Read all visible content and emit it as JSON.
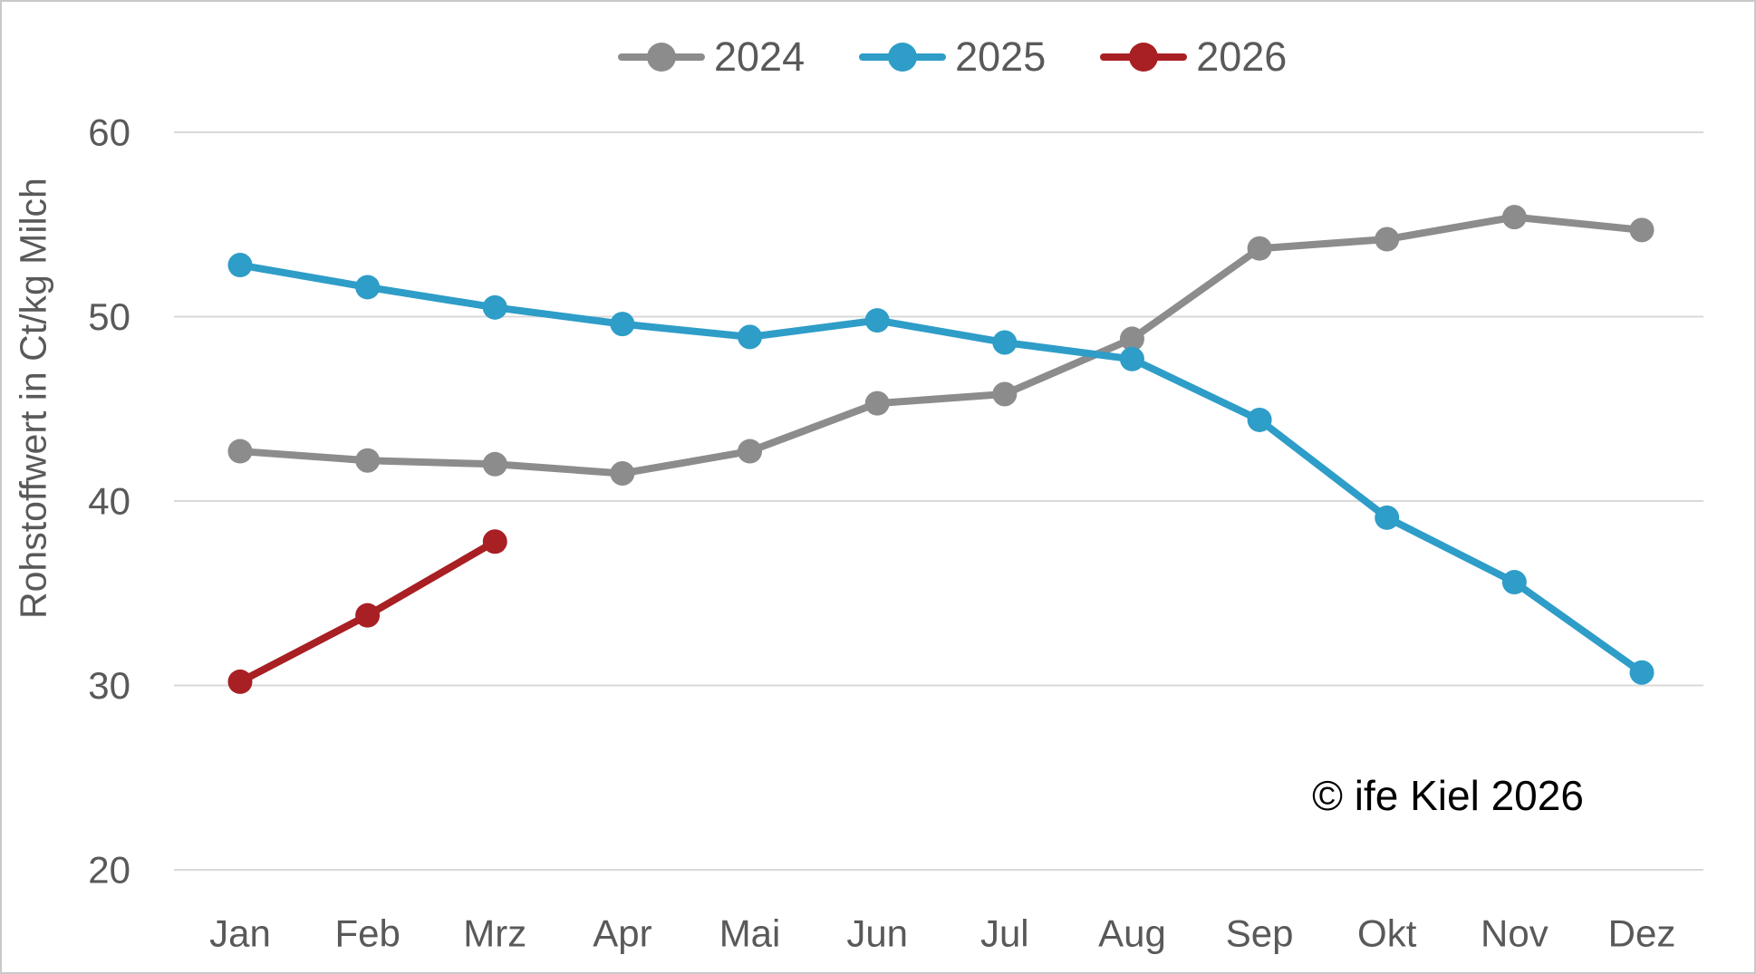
{
  "figure": {
    "border_color": "#c9c9c9",
    "background": "#ffffff"
  },
  "style": {
    "gridline_color": "#d9d9d9",
    "tick_text_color": "#595959",
    "copyright_color": "#000000"
  },
  "chart_data": {
    "type": "line",
    "title": "",
    "xlabel": "",
    "ylabel": "Rohstoffwert in Ct/kg Milch",
    "categories": [
      "Jan",
      "Feb",
      "Mrz",
      "Apr",
      "Mai",
      "Jun",
      "Jul",
      "Aug",
      "Sep",
      "Okt",
      "Nov",
      "Dez"
    ],
    "series": [
      {
        "name": "2024",
        "color": "#8c8c8c",
        "values": [
          42.7,
          42.2,
          42.0,
          41.5,
          42.7,
          45.3,
          45.8,
          48.8,
          53.7,
          54.2,
          55.4,
          54.7
        ]
      },
      {
        "name": "2025",
        "color": "#2e9dc8",
        "values": [
          52.8,
          51.6,
          50.5,
          49.6,
          48.9,
          49.8,
          48.6,
          47.7,
          44.4,
          39.1,
          35.6,
          30.7
        ]
      },
      {
        "name": "2026",
        "color": "#a81f24",
        "values": [
          30.2,
          33.8,
          37.8,
          null,
          null,
          null,
          null,
          null,
          null,
          null,
          null,
          null
        ]
      }
    ],
    "ylim": [
      20,
      60
    ],
    "yticks": [
      20,
      30,
      40,
      50,
      60
    ],
    "grid": true,
    "legend_position": "top",
    "annotation": "© ife Kiel 2026"
  }
}
